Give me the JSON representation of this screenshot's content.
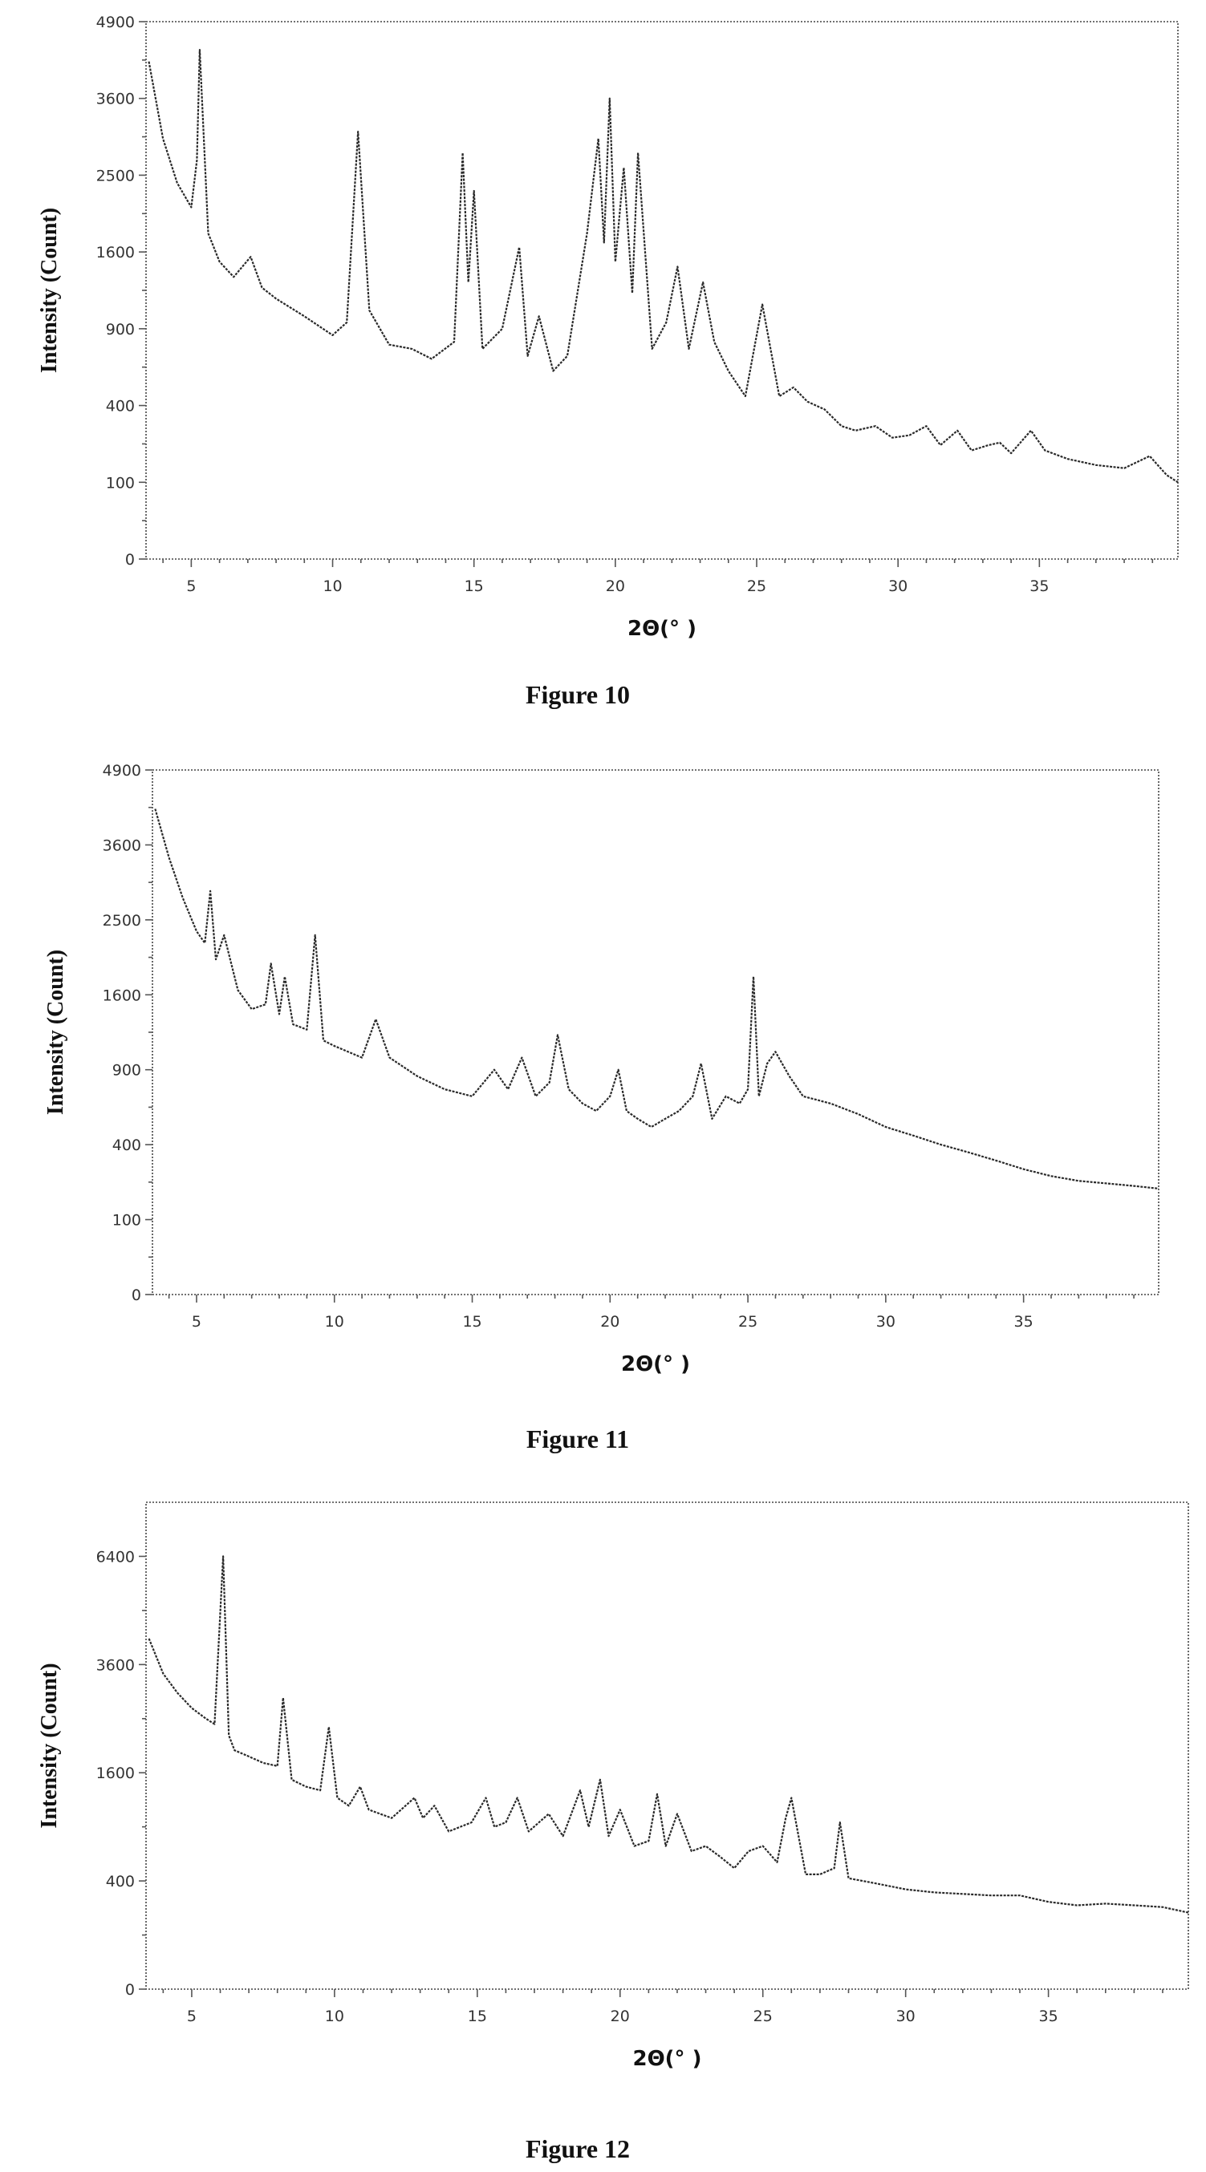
{
  "chart_data": [
    {
      "type": "line",
      "caption": "Figure 10",
      "xlabel": "2Θ(° )",
      "ylabel": "Intensity (Count)",
      "xlim": [
        3.4,
        39.9
      ],
      "xticks": [
        5,
        10,
        15,
        20,
        25,
        30,
        35
      ],
      "yticks": [
        0,
        100,
        400,
        900,
        1600,
        2500,
        3600,
        4900
      ],
      "ytick_labels": [
        "0",
        "100",
        "400",
        "900",
        "1600",
        "2500",
        "3600",
        "4900"
      ],
      "y_scale": "sqrt",
      "ylim": [
        0,
        4900
      ],
      "grid": false,
      "series": [
        {
          "x": [
            3.5,
            4.0,
            4.5,
            5.0,
            5.2,
            5.3,
            5.6,
            6.0,
            6.5,
            7.1,
            7.5,
            8.0,
            9.0,
            10.0,
            10.5,
            10.9,
            11.3,
            12.0,
            12.8,
            13.5,
            14.3,
            14.6,
            14.8,
            15.0,
            15.3,
            16.0,
            16.6,
            16.9,
            17.3,
            17.8,
            18.3,
            19.0,
            19.4,
            19.6,
            19.8,
            20.0,
            20.3,
            20.6,
            20.8,
            21.3,
            21.8,
            22.2,
            22.6,
            23.1,
            23.5,
            24.0,
            24.6,
            25.2,
            25.8,
            26.3,
            26.8,
            27.4,
            28.0,
            28.5,
            29.2,
            29.8,
            30.4,
            31.0,
            31.5,
            32.1,
            32.6,
            33.2,
            33.6,
            34.0,
            34.7,
            35.2,
            36.0,
            37.0,
            38.0,
            38.9,
            39.5,
            39.9
          ],
          "y": [
            4200,
            3000,
            2400,
            2100,
            2700,
            4400,
            1800,
            1500,
            1350,
            1550,
            1250,
            1150,
            1000,
            850,
            950,
            3100,
            1050,
            780,
            750,
            680,
            800,
            2800,
            1300,
            2300,
            750,
            900,
            1650,
            700,
            1000,
            600,
            700,
            1800,
            3000,
            1700,
            3600,
            1500,
            2600,
            1200,
            2800,
            750,
            950,
            1450,
            750,
            1300,
            800,
            600,
            450,
            1100,
            450,
            500,
            420,
            380,
            300,
            280,
            300,
            250,
            260,
            300,
            220,
            280,
            200,
            220,
            230,
            190,
            280,
            200,
            170,
            150,
            140,
            180,
            120,
            100
          ]
        }
      ]
    },
    {
      "type": "line",
      "caption": "Figure 11",
      "xlabel": "2Θ(° )",
      "ylabel": "Intensity (Count)",
      "xlim": [
        3.4,
        39.9
      ],
      "xticks": [
        5,
        10,
        15,
        20,
        25,
        30,
        35
      ],
      "yticks": [
        0,
        100,
        400,
        900,
        1600,
        2500,
        3600,
        4900
      ],
      "ytick_labels": [
        "0",
        "100",
        "400",
        "900",
        "1600",
        "2500",
        "3600",
        "4900"
      ],
      "y_scale": "sqrt",
      "ylim": [
        0,
        4900
      ],
      "grid": false,
      "series": [
        {
          "x": [
            3.5,
            4.0,
            4.5,
            5.0,
            5.3,
            5.5,
            5.7,
            6.0,
            6.5,
            7.0,
            7.5,
            7.7,
            8.0,
            8.2,
            8.5,
            9.0,
            9.3,
            9.6,
            10.0,
            11.0,
            11.5,
            12.0,
            13.0,
            14.0,
            15.0,
            15.8,
            16.3,
            16.8,
            17.3,
            17.8,
            18.1,
            18.5,
            19.0,
            19.5,
            20.0,
            20.3,
            20.6,
            21.0,
            21.5,
            22.0,
            22.5,
            23.0,
            23.3,
            23.7,
            24.2,
            24.7,
            25.0,
            25.2,
            25.4,
            25.7,
            26.0,
            26.5,
            27.0,
            28.0,
            29.0,
            30.0,
            31.0,
            32.0,
            33.0,
            34.0,
            35.0,
            36.0,
            37.0,
            38.0,
            39.0,
            39.9
          ],
          "y": [
            4200,
            3400,
            2800,
            2350,
            2200,
            2900,
            2000,
            2300,
            1650,
            1450,
            1500,
            1950,
            1400,
            1800,
            1300,
            1250,
            2300,
            1150,
            1100,
            1000,
            1350,
            1000,
            850,
            750,
            700,
            900,
            750,
            1000,
            700,
            800,
            1200,
            750,
            650,
            600,
            700,
            900,
            600,
            550,
            500,
            550,
            600,
            700,
            950,
            550,
            700,
            650,
            750,
            1800,
            700,
            950,
            1050,
            850,
            700,
            650,
            580,
            500,
            450,
            400,
            360,
            320,
            280,
            250,
            230,
            220,
            210,
            200
          ]
        }
      ]
    },
    {
      "type": "line",
      "caption": "Figure 12",
      "xlabel": "2Θ(° )",
      "ylabel": "Intensity (Count)",
      "xlim": [
        3.4,
        39.9
      ],
      "xticks": [
        5,
        10,
        15,
        20,
        25,
        30,
        35
      ],
      "yticks": [
        0,
        400,
        1600,
        3600,
        6400
      ],
      "ytick_labels": [
        "0",
        "400",
        "1600",
        "3600",
        "6400"
      ],
      "y_scale": "sqrt",
      "ylim": [
        0,
        8100
      ],
      "grid": false,
      "series": [
        {
          "x": [
            3.5,
            4.0,
            4.5,
            5.0,
            5.5,
            5.8,
            6.1,
            6.3,
            6.5,
            7.0,
            7.5,
            8.0,
            8.2,
            8.5,
            9.0,
            9.5,
            9.8,
            10.1,
            10.5,
            10.9,
            11.2,
            12.0,
            12.8,
            13.1,
            13.5,
            14.0,
            14.8,
            15.3,
            15.6,
            16.0,
            16.4,
            16.8,
            17.5,
            18.0,
            18.6,
            18.9,
            19.3,
            19.6,
            20.0,
            20.5,
            21.0,
            21.3,
            21.6,
            22.0,
            22.5,
            23.0,
            23.5,
            24.0,
            24.5,
            25.0,
            25.5,
            25.8,
            26.0,
            26.5,
            27.0,
            27.5,
            27.7,
            28.0,
            28.5,
            29.0,
            30.0,
            31.0,
            32.0,
            33.0,
            34.0,
            35.0,
            36.0,
            37.0,
            38.0,
            39.0,
            39.9
          ],
          "y": [
            4200,
            3400,
            3000,
            2700,
            2500,
            2400,
            6400,
            2200,
            1950,
            1850,
            1750,
            1700,
            2900,
            1500,
            1400,
            1350,
            2350,
            1250,
            1150,
            1400,
            1100,
            1000,
            1250,
            1000,
            1150,
            850,
            950,
            1250,
            900,
            950,
            1250,
            850,
            1050,
            800,
            1350,
            900,
            1500,
            800,
            1100,
            700,
            750,
            1300,
            700,
            1050,
            650,
            700,
            600,
            500,
            650,
            700,
            550,
            1000,
            1250,
            450,
            450,
            500,
            950,
            420,
            400,
            380,
            340,
            320,
            310,
            300,
            300,
            260,
            240,
            250,
            240,
            230,
            200
          ]
        }
      ]
    }
  ]
}
